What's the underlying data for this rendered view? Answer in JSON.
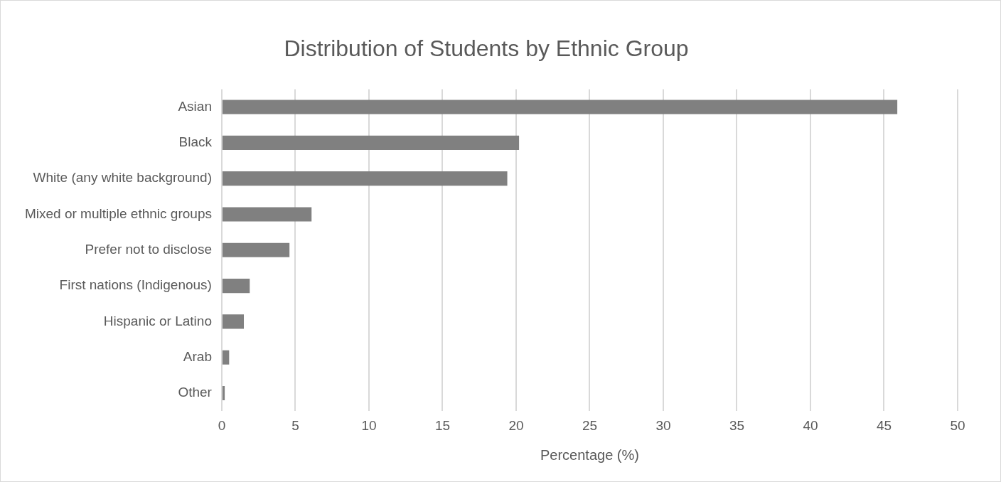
{
  "chart_data": {
    "type": "bar",
    "orientation": "horizontal",
    "title": "Distribution of Students by Ethnic Group",
    "xlabel": "Percentage (%)",
    "categories": [
      "Asian",
      "Black",
      "White (any white background)",
      "Mixed or multiple ethnic groups",
      "Prefer not to disclose",
      "First nations (Indigenous)",
      "Hispanic or Latino",
      "Arab",
      "Other"
    ],
    "values": [
      45.9,
      20.2,
      19.4,
      6.1,
      4.6,
      1.9,
      1.5,
      0.5,
      0.2
    ],
    "color": "#808080",
    "xlim": [
      0,
      50
    ],
    "xticks": [
      0,
      5,
      10,
      15,
      20,
      25,
      30,
      35,
      40,
      45,
      50
    ],
    "grid": "x"
  }
}
